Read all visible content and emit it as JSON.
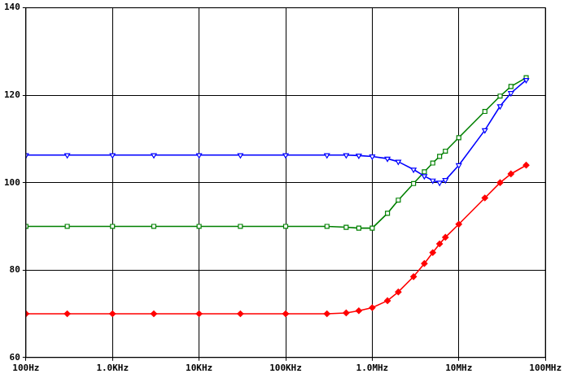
{
  "chart_data": {
    "type": "line",
    "log": "x",
    "grid": true,
    "x": [
      100,
      300,
      1000,
      3000,
      10000,
      30000,
      100000,
      300000,
      500000,
      700000,
      1000000,
      1500000,
      2000000,
      3000000,
      4000000,
      5000000,
      6000000,
      7000000,
      10000000,
      20000000,
      30000000,
      40000000,
      60000000
    ],
    "xlim": [
      100,
      100000000
    ],
    "xticks": [
      {
        "value": 100,
        "label": "100Hz"
      },
      {
        "value": 1000,
        "label": "1.0KHz"
      },
      {
        "value": 10000,
        "label": "10KHz"
      },
      {
        "value": 100000,
        "label": "100KHz"
      },
      {
        "value": 1000000,
        "label": "1.0MHz"
      },
      {
        "value": 10000000,
        "label": "10MHz"
      },
      {
        "value": 100000000,
        "label": "100MHz"
      }
    ],
    "ylim": [
      60,
      140
    ],
    "yticks": [
      60,
      80,
      100,
      120,
      140
    ],
    "series": [
      {
        "color": "#0000ff",
        "marker": "triangle-down",
        "values": [
          106.3,
          106.3,
          106.3,
          106.3,
          106.3,
          106.3,
          106.3,
          106.3,
          106.3,
          106.2,
          106,
          105.5,
          104.8,
          103,
          101.5,
          100.5,
          100,
          100.6,
          104,
          112,
          117.5,
          120.5,
          123.5
        ]
      },
      {
        "color": "#008000",
        "marker": "square",
        "values": [
          90,
          90,
          90,
          90,
          90,
          90,
          90,
          90,
          89.8,
          89.6,
          89.6,
          93,
          96,
          99.8,
          102.5,
          104.5,
          106,
          107.2,
          110.3,
          116.3,
          119.8,
          122,
          124
        ]
      },
      {
        "color": "#ff0000",
        "marker": "diamond",
        "values": [
          70,
          70,
          70,
          70,
          70,
          70,
          70,
          70,
          70.2,
          70.7,
          71.4,
          73,
          75,
          78.5,
          81.5,
          84,
          86,
          87.5,
          90.5,
          96.5,
          100,
          102,
          104
        ]
      }
    ]
  }
}
